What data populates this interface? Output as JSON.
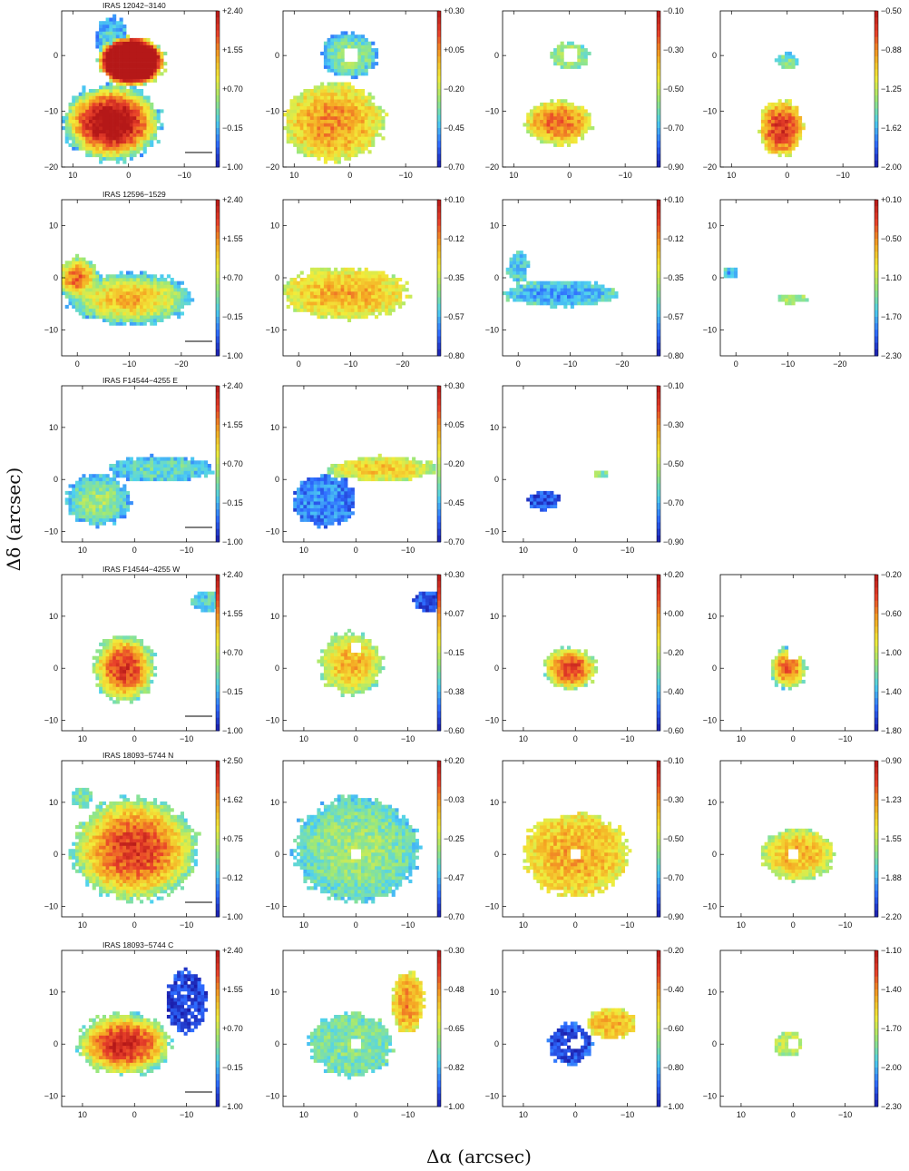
{
  "figure": {
    "ylabel": "Δδ (arcsec)",
    "xlabel": "Δα (arcsec)"
  },
  "colormap": [
    "#1a1aa8",
    "#2e6bff",
    "#4fd2f0",
    "#9be87a",
    "#f2ec3a",
    "#f5a623",
    "#e8402a",
    "#b51818"
  ],
  "chart_data": [
    {
      "type": "heatmap",
      "object": "IRAS 12042−3140",
      "xlim": [
        12,
        -16
      ],
      "ylim": [
        -20,
        8
      ],
      "x_ticks": [
        "10",
        "0",
        "−10"
      ],
      "y_ticks": [
        "0",
        "−10",
        "−20"
      ],
      "scale_bar": true,
      "panels": [
        {
          "colorbar": [
            "+2.40",
            "+1.55",
            "+0.70",
            "−0.15",
            "−1.00"
          ],
          "vmin": -1.0,
          "vmax": 2.4,
          "blobs": [
            {
              "cx": -0.5,
              "cy": -1,
              "rx": 6,
              "ry": 4.5,
              "level": 0.45,
              "peak": 1.9
            },
            {
              "cx": 3,
              "cy": -12,
              "rx": 9,
              "ry": 7,
              "level": 0.25,
              "peak": 1.1
            },
            {
              "cx": 3,
              "cy": 3,
              "rx": 3,
              "ry": 4,
              "level": 0.2,
              "peak": 0.3
            }
          ]
        },
        {
          "colorbar": [
            "+0.30",
            "+0.05",
            "−0.20",
            "−0.45",
            "−0.70"
          ],
          "vmin": -0.7,
          "vmax": 0.3,
          "hole": [
            0,
            0
          ],
          "blobs": [
            {
              "cx": 0,
              "cy": 0,
              "rx": 5,
              "ry": 4,
              "level": 0.25,
              "peak": 0.45
            },
            {
              "cx": 3,
              "cy": -12,
              "rx": 9,
              "ry": 7,
              "level": 0.5,
              "peak": 0.75
            }
          ]
        },
        {
          "colorbar": [
            "−0.10",
            "−0.30",
            "−0.50",
            "−0.70",
            "−0.90"
          ],
          "vmin": -0.9,
          "vmax": -0.1,
          "hole": [
            0,
            0
          ],
          "blobs": [
            {
              "cx": 0,
              "cy": 0,
              "rx": 3.5,
              "ry": 2.5,
              "level": 0.35,
              "peak": 0.5
            },
            {
              "cx": 2,
              "cy": -12,
              "rx": 6,
              "ry": 4,
              "level": 0.5,
              "peak": 0.8
            }
          ]
        },
        {
          "colorbar": [
            "−0.50",
            "−0.88",
            "−1.25",
            "−1.62",
            "−2.00"
          ],
          "vmin": -2.0,
          "vmax": -0.5,
          "blobs": [
            {
              "cx": 0,
              "cy": -1,
              "rx": 2,
              "ry": 1.5,
              "level": 0.3,
              "peak": 0.4
            },
            {
              "cx": 1,
              "cy": -13,
              "rx": 4,
              "ry": 5,
              "level": 0.55,
              "peak": 0.9
            }
          ]
        }
      ]
    },
    {
      "type": "heatmap",
      "object": "IRAS 12596−1529",
      "xlim": [
        3,
        -27
      ],
      "ylim": [
        -15,
        15
      ],
      "x_ticks": [
        "0",
        "−10",
        "−20"
      ],
      "y_ticks": [
        "10",
        "0",
        "−10"
      ],
      "scale_bar": true,
      "panels": [
        {
          "colorbar": [
            "+2.40",
            "+1.55",
            "+0.70",
            "−0.15",
            "−1.00"
          ],
          "vmin": -1.0,
          "vmax": 2.4,
          "blobs": [
            {
              "cx": 0,
              "cy": 0,
              "rx": 4,
              "ry": 4,
              "level": 0.35,
              "peak": 0.8
            },
            {
              "cx": -10,
              "cy": -4,
              "rx": 12,
              "ry": 5,
              "level": 0.25,
              "peak": 0.7
            }
          ]
        },
        {
          "colorbar": [
            "+0.10",
            "−0.12",
            "−0.35",
            "−0.57",
            "−0.80"
          ],
          "vmin": -0.8,
          "vmax": 0.1,
          "blobs": [
            {
              "cx": -9,
              "cy": -3,
              "rx": 12,
              "ry": 5,
              "level": 0.5,
              "peak": 0.7
            }
          ]
        },
        {
          "colorbar": [
            "+0.10",
            "−0.12",
            "−0.35",
            "−0.57",
            "−0.80"
          ],
          "vmin": -0.8,
          "vmax": 0.1,
          "blobs": [
            {
              "cx": -8,
              "cy": -3,
              "rx": 11,
              "ry": 2.5,
              "level": 0.35,
              "peak": 0.2
            },
            {
              "cx": 0,
              "cy": 2,
              "rx": 2,
              "ry": 3,
              "level": 0.3,
              "peak": 0.3
            }
          ]
        },
        {
          "colorbar": [
            "+0.10",
            "−0.50",
            "−1.10",
            "−1.70",
            "−2.30"
          ],
          "vmin": -2.3,
          "vmax": 0.1,
          "blobs": [
            {
              "cx": -11,
              "cy": -4,
              "rx": 3,
              "ry": 1,
              "level": 0.4,
              "peak": 0.45
            },
            {
              "cx": 1,
              "cy": 1,
              "rx": 1.5,
              "ry": 1,
              "level": 0.3,
              "peak": 0.2
            }
          ]
        }
      ]
    },
    {
      "type": "heatmap",
      "object": "IRAS F14544−4255 E",
      "xlim": [
        14,
        -16
      ],
      "ylim": [
        -12,
        18
      ],
      "x_ticks": [
        "10",
        "0",
        "−10"
      ],
      "y_ticks": [
        "10",
        "0",
        "−10"
      ],
      "scale_bar": true,
      "panels": [
        {
          "colorbar": [
            "+2.40",
            "+1.55",
            "+0.70",
            "−0.15",
            "−1.00"
          ],
          "vmin": -1.0,
          "vmax": 2.4,
          "blobs": [
            {
              "cx": 7,
              "cy": -4,
              "rx": 6,
              "ry": 5,
              "level": 0.25,
              "peak": 0.45
            },
            {
              "cx": -5,
              "cy": 2,
              "rx": 10,
              "ry": 2.5,
              "level": 0.25,
              "peak": 0.35
            }
          ]
        },
        {
          "colorbar": [
            "+0.30",
            "+0.05",
            "−0.20",
            "−0.45",
            "−0.70"
          ],
          "vmin": -0.7,
          "vmax": 0.3,
          "blobs": [
            {
              "cx": 6,
              "cy": -4,
              "rx": 6,
              "ry": 5,
              "level": 0.15,
              "peak": 0.2
            },
            {
              "cx": -5,
              "cy": 2,
              "rx": 10,
              "ry": 2.5,
              "level": 0.45,
              "peak": 0.65
            }
          ]
        },
        {
          "colorbar": [
            "−0.10",
            "−0.30",
            "−0.50",
            "−0.70",
            "−0.90"
          ],
          "vmin": -0.9,
          "vmax": -0.1,
          "blobs": [
            {
              "cx": 6,
              "cy": -4,
              "rx": 3,
              "ry": 2,
              "level": 0.12,
              "peak": 0.1
            },
            {
              "cx": -5,
              "cy": 1,
              "rx": 1.5,
              "ry": 0.6,
              "level": 0.4,
              "peak": 0.4
            }
          ]
        },
        null
      ]
    },
    {
      "type": "heatmap",
      "object": "IRAS F14544−4255 W",
      "xlim": [
        14,
        -16
      ],
      "ylim": [
        -12,
        18
      ],
      "x_ticks": [
        "10",
        "0",
        "−10"
      ],
      "y_ticks": [
        "10",
        "0",
        "−10"
      ],
      "scale_bar": true,
      "panels": [
        {
          "colorbar": [
            "+2.40",
            "+1.55",
            "+0.70",
            "−0.15",
            "−1.00"
          ],
          "vmin": -1.0,
          "vmax": 2.4,
          "blobs": [
            {
              "cx": 2,
              "cy": 0,
              "rx": 6,
              "ry": 6.5,
              "level": 0.35,
              "peak": 0.9
            },
            {
              "cx": -14,
              "cy": 13,
              "rx": 3,
              "ry": 2,
              "level": 0.3,
              "peak": 0.3
            }
          ]
        },
        {
          "colorbar": [
            "+0.30",
            "+0.07",
            "−0.15",
            "−0.38",
            "−0.60"
          ],
          "vmin": -0.6,
          "vmax": 0.3,
          "hole": [
            0,
            4
          ],
          "blobs": [
            {
              "cx": 1,
              "cy": 1,
              "rx": 6,
              "ry": 6,
              "level": 0.4,
              "peak": 0.7
            },
            {
              "cx": -14,
              "cy": 13,
              "rx": 3,
              "ry": 2,
              "level": 0.1,
              "peak": 0.1
            }
          ]
        },
        {
          "colorbar": [
            "+0.20",
            "+0.00",
            "−0.20",
            "−0.40",
            "−0.60"
          ],
          "vmin": -0.6,
          "vmax": 0.2,
          "blobs": [
            {
              "cx": 1,
              "cy": 0,
              "rx": 5,
              "ry": 4,
              "level": 0.4,
              "peak": 0.9
            }
          ]
        },
        {
          "colorbar": [
            "−0.20",
            "−0.60",
            "−1.00",
            "−1.40",
            "−1.80"
          ],
          "vmin": -1.8,
          "vmax": -0.2,
          "hole": [
            0,
            3
          ],
          "blobs": [
            {
              "cx": 1,
              "cy": 0,
              "rx": 3.5,
              "ry": 4,
              "level": 0.3,
              "peak": 0.85
            }
          ]
        }
      ]
    },
    {
      "type": "heatmap",
      "object": "IRAS 18093−5744 N",
      "xlim": [
        14,
        -16
      ],
      "ylim": [
        -12,
        18
      ],
      "x_ticks": [
        "10",
        "0",
        "−10"
      ],
      "y_ticks": [
        "10",
        "0",
        "−10"
      ],
      "scale_bar": true,
      "panels": [
        {
          "colorbar": [
            "+2.50",
            "+1.62",
            "+0.75",
            "−0.12",
            "−1.00"
          ],
          "vmin": -1.0,
          "vmax": 2.5,
          "blobs": [
            {
              "cx": 0,
              "cy": 1,
              "rx": 12,
              "ry": 10,
              "level": 0.35,
              "peak": 0.9
            },
            {
              "cx": 10,
              "cy": 11,
              "rx": 2,
              "ry": 2,
              "level": 0.35,
              "peak": 0.4
            }
          ]
        },
        {
          "colorbar": [
            "+0.20",
            "−0.03",
            "−0.25",
            "−0.47",
            "−0.70"
          ],
          "vmin": -0.7,
          "vmax": 0.2,
          "hole": [
            0,
            0
          ],
          "blobs": [
            {
              "cx": 0,
              "cy": 1,
              "rx": 12,
              "ry": 10,
              "level": 0.3,
              "peak": 0.45
            }
          ]
        },
        {
          "colorbar": [
            "−0.10",
            "−0.30",
            "−0.50",
            "−0.70",
            "−0.90"
          ],
          "vmin": -0.9,
          "vmax": -0.1,
          "hole": [
            0,
            0
          ],
          "blobs": [
            {
              "cx": 0,
              "cy": 0,
              "rx": 10,
              "ry": 8,
              "level": 0.55,
              "peak": 0.7
            }
          ]
        },
        {
          "colorbar": [
            "−0.90",
            "−1.23",
            "−1.55",
            "−1.88",
            "−2.20"
          ],
          "vmin": -2.2,
          "vmax": -0.9,
          "hole": [
            0,
            0
          ],
          "blobs": [
            {
              "cx": -1,
              "cy": 0,
              "rx": 7,
              "ry": 5,
              "level": 0.45,
              "peak": 0.7
            }
          ]
        }
      ]
    },
    {
      "type": "heatmap",
      "object": "IRAS 18093−5744 C",
      "xlim": [
        14,
        -16
      ],
      "ylim": [
        -12,
        18
      ],
      "x_ticks": [
        "10",
        "0",
        "−10"
      ],
      "y_ticks": [
        "10",
        "0",
        "−10"
      ],
      "scale_bar": true,
      "panels": [
        {
          "colorbar": [
            "+2.40",
            "+1.55",
            "+0.70",
            "−0.15",
            "−1.00"
          ],
          "vmin": -1.0,
          "vmax": 2.4,
          "blobs": [
            {
              "cx": 2,
              "cy": 0,
              "rx": 9,
              "ry": 6,
              "level": 0.35,
              "peak": 0.95
            },
            {
              "cx": -10,
              "cy": 8,
              "rx": 4,
              "ry": 6,
              "level": 0.08,
              "peak": 0.05
            }
          ]
        },
        {
          "colorbar": [
            "−0.30",
            "−0.48",
            "−0.65",
            "−0.82",
            "−1.00"
          ],
          "vmin": -1.0,
          "vmax": -0.3,
          "hole": [
            0,
            0
          ],
          "blobs": [
            {
              "cx": 1,
              "cy": 0,
              "rx": 8,
              "ry": 6,
              "level": 0.35,
              "peak": 0.4
            },
            {
              "cx": -10,
              "cy": 8,
              "rx": 3,
              "ry": 6,
              "level": 0.55,
              "peak": 0.75
            }
          ]
        },
        {
          "colorbar": [
            "−0.20",
            "−0.40",
            "−0.60",
            "−0.80",
            "−1.00"
          ],
          "vmin": -1.0,
          "vmax": -0.2,
          "hole": [
            0,
            0
          ],
          "blobs": [
            {
              "cx": 1,
              "cy": 0,
              "rx": 4,
              "ry": 4,
              "level": 0.12,
              "peak": 0.05
            },
            {
              "cx": -7,
              "cy": 4,
              "rx": 5,
              "ry": 3,
              "level": 0.55,
              "peak": 0.7
            }
          ]
        },
        {
          "colorbar": [
            "−1.10",
            "−1.40",
            "−1.70",
            "−2.00",
            "−2.30"
          ],
          "vmin": -2.3,
          "vmax": -1.1,
          "hole": [
            0,
            0
          ],
          "blobs": [
            {
              "cx": 1,
              "cy": 0,
              "rx": 2.5,
              "ry": 2.5,
              "level": 0.45,
              "peak": 0.5
            }
          ]
        }
      ]
    }
  ]
}
